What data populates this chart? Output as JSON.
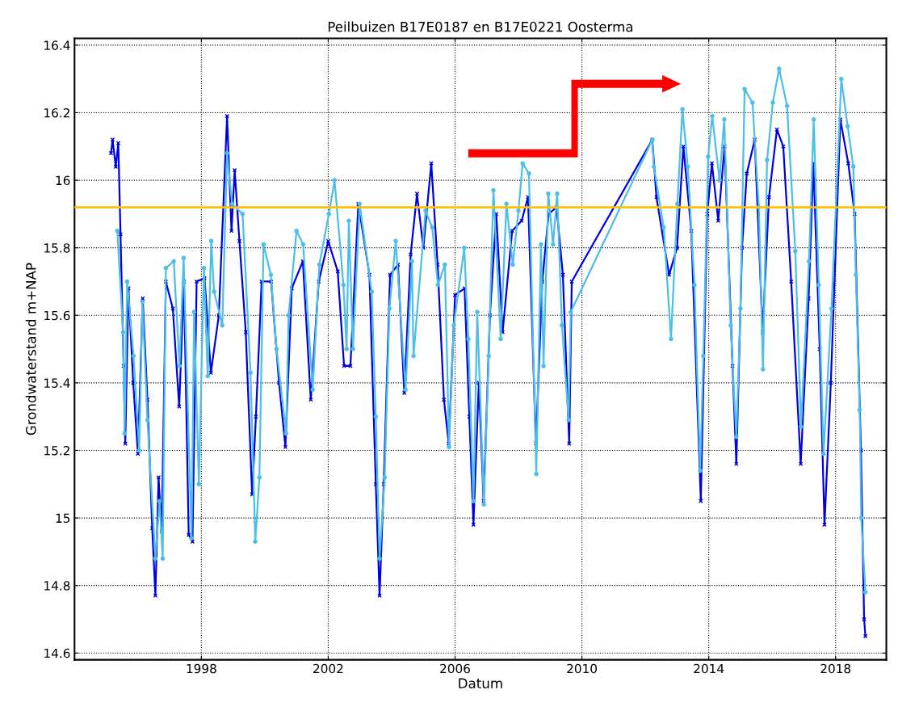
{
  "chart_data": {
    "type": "line",
    "title": "Peilbuizen B17E0187 en B17E0221 Oosterma",
    "xlabel": "Datum",
    "ylabel": "Grondwaterstand m+NAP",
    "xlim": [
      1994.0,
      2019.6
    ],
    "xticks": [
      1998,
      2002,
      2006,
      2010,
      2014,
      2018
    ],
    "ylim": [
      14.58,
      16.42
    ],
    "yticks": [
      14.6,
      14.8,
      15,
      15.2,
      15.4,
      15.6,
      15.8,
      16,
      16.2,
      16.4
    ],
    "grid": true,
    "legend": false,
    "line_style": "solid",
    "ref_lines": [
      {
        "axis": "y",
        "value": 15.92,
        "color": "#ffc000",
        "line_style": "solid"
      }
    ],
    "series": [
      {
        "color": "#0000e0",
        "marker": "cross",
        "x": [
          1995.15,
          1995.2,
          1995.3,
          1995.38,
          1995.45,
          1995.55,
          1995.6,
          1995.7,
          1995.85,
          1996.0,
          1996.15,
          1996.3,
          1996.45,
          1996.55,
          1996.65,
          1996.75,
          1996.88,
          1997.1,
          1997.3,
          1997.45,
          1997.6,
          1997.72,
          1997.85,
          1998.1,
          1998.3,
          1998.55,
          1998.81,
          1998.95,
          1999.05,
          1999.2,
          1999.4,
          1999.6,
          1999.72,
          1999.9,
          2000.2,
          2000.45,
          2000.65,
          2000.85,
          2001.2,
          2001.45,
          2001.7,
          2002.0,
          2002.3,
          2002.5,
          2002.7,
          2002.95,
          2003.3,
          2003.5,
          2003.62,
          2003.75,
          2003.95,
          2004.2,
          2004.4,
          2004.6,
          2004.8,
          2005.0,
          2005.25,
          2005.45,
          2005.65,
          2005.8,
          2006.0,
          2006.3,
          2006.45,
          2006.58,
          2006.75,
          2006.9,
          2007.1,
          2007.3,
          2007.5,
          2007.8,
          2008.1,
          2008.3,
          2008.55,
          2008.75,
          2008.95,
          2009.2,
          2009.4,
          2009.6,
          2009.68,
          2012.22,
          2012.35,
          2012.75,
          2013.0,
          2013.2,
          2013.45,
          2013.75,
          2013.95,
          2014.1,
          2014.3,
          2014.5,
          2014.75,
          2014.87,
          2015.05,
          2015.2,
          2015.45,
          2015.7,
          2015.9,
          2016.15,
          2016.35,
          2016.6,
          2016.9,
          2017.15,
          2017.3,
          2017.5,
          2017.65,
          2017.85,
          2018.15,
          2018.4,
          2018.6,
          2018.8,
          2018.9,
          2018.94
        ],
        "values": [
          16.08,
          16.12,
          16.04,
          16.11,
          15.84,
          15.45,
          15.22,
          15.68,
          15.4,
          15.19,
          15.65,
          15.35,
          14.97,
          14.77,
          15.12,
          14.96,
          15.7,
          15.62,
          15.33,
          15.7,
          14.95,
          14.93,
          15.7,
          15.71,
          15.43,
          15.6,
          16.19,
          15.85,
          16.03,
          15.82,
          15.55,
          15.07,
          15.3,
          15.7,
          15.7,
          15.4,
          15.21,
          15.68,
          15.76,
          15.35,
          15.7,
          15.82,
          15.73,
          15.45,
          15.45,
          15.93,
          15.72,
          15.1,
          14.77,
          15.1,
          15.72,
          15.75,
          15.37,
          15.78,
          15.96,
          15.8,
          16.05,
          15.75,
          15.35,
          15.22,
          15.66,
          15.68,
          15.3,
          14.98,
          15.4,
          15.05,
          15.6,
          15.9,
          15.55,
          15.85,
          15.88,
          15.95,
          15.22,
          15.7,
          15.9,
          15.92,
          15.72,
          15.22,
          15.7,
          16.12,
          15.95,
          15.72,
          15.8,
          16.1,
          15.85,
          15.05,
          15.9,
          16.05,
          15.88,
          16.1,
          15.45,
          15.16,
          15.8,
          16.02,
          16.12,
          15.55,
          15.95,
          16.15,
          16.1,
          15.7,
          15.16,
          15.65,
          16.05,
          15.5,
          14.98,
          15.4,
          16.18,
          16.05,
          15.9,
          15.2,
          14.7,
          14.65
        ]
      },
      {
        "color": "#4cbfe8",
        "marker": "circle",
        "x": [
          1995.35,
          1995.53,
          1995.58,
          1995.66,
          1995.86,
          1996.04,
          1996.14,
          1996.3,
          1996.55,
          1996.68,
          1996.78,
          1996.88,
          1997.13,
          1997.31,
          1997.44,
          1997.69,
          1997.77,
          1997.92,
          1998.08,
          1998.2,
          1998.31,
          1998.4,
          1998.66,
          1998.81,
          1998.97,
          1999.3,
          1999.55,
          1999.7,
          1999.83,
          1999.96,
          2000.19,
          2000.37,
          2000.67,
          2000.75,
          2001.0,
          2001.21,
          2001.51,
          2001.72,
          2002.02,
          2002.2,
          2002.48,
          2002.58,
          2002.65,
          2002.78,
          2002.99,
          2003.37,
          2003.5,
          2003.62,
          2003.78,
          2003.93,
          2004.13,
          2004.44,
          2004.64,
          2004.69,
          2005.07,
          2005.28,
          2005.46,
          2005.68,
          2005.81,
          2005.96,
          2006.29,
          2006.42,
          2006.58,
          2006.7,
          2006.91,
          2007.06,
          2007.21,
          2007.44,
          2007.62,
          2007.82,
          2008.0,
          2008.13,
          2008.33,
          2008.56,
          2008.71,
          2008.79,
          2008.94,
          2009.09,
          2009.22,
          2009.37,
          2009.58,
          2009.65,
          2012.22,
          2012.27,
          2012.58,
          2012.81,
          2013.01,
          2013.17,
          2013.34,
          2013.55,
          2013.73,
          2013.83,
          2013.98,
          2014.11,
          2014.34,
          2014.49,
          2014.69,
          2014.87,
          2015.0,
          2015.13,
          2015.38,
          2015.58,
          2015.71,
          2015.84,
          2016.02,
          2016.22,
          2016.47,
          2016.73,
          2016.91,
          2017.16,
          2017.31,
          2017.47,
          2017.62,
          2017.87,
          2018.18,
          2018.38,
          2018.56,
          2018.64,
          2018.76,
          2018.81,
          2018.94
        ],
        "values": [
          15.85,
          15.55,
          15.25,
          15.7,
          15.48,
          15.2,
          15.64,
          15.29,
          14.88,
          15.05,
          14.88,
          15.74,
          15.76,
          15.45,
          15.77,
          14.94,
          15.61,
          15.1,
          15.74,
          15.42,
          15.82,
          15.67,
          15.57,
          16.08,
          15.93,
          15.9,
          15.43,
          14.93,
          15.12,
          15.81,
          15.72,
          15.5,
          15.25,
          15.6,
          15.85,
          15.81,
          15.38,
          15.75,
          15.9,
          16.0,
          15.69,
          15.5,
          15.88,
          15.5,
          15.93,
          15.67,
          15.3,
          14.88,
          15.12,
          15.62,
          15.82,
          15.38,
          15.76,
          15.48,
          15.91,
          15.86,
          15.69,
          15.75,
          15.21,
          15.57,
          15.8,
          15.53,
          15.05,
          15.61,
          15.04,
          15.48,
          15.97,
          15.53,
          15.93,
          15.75,
          15.91,
          16.05,
          16.02,
          15.13,
          15.81,
          15.45,
          15.96,
          15.81,
          15.96,
          15.57,
          15.29,
          15.61,
          16.12,
          16.04,
          15.86,
          15.53,
          15.93,
          16.21,
          16.04,
          15.69,
          15.14,
          15.48,
          16.07,
          16.19,
          16.0,
          16.18,
          15.57,
          15.24,
          15.62,
          16.27,
          16.23,
          15.92,
          15.44,
          16.06,
          16.23,
          16.33,
          16.22,
          15.79,
          15.27,
          15.76,
          16.18,
          15.69,
          15.19,
          15.62,
          16.3,
          16.16,
          16.04,
          15.72,
          15.32,
          15.0,
          14.78
        ]
      }
    ]
  }
}
